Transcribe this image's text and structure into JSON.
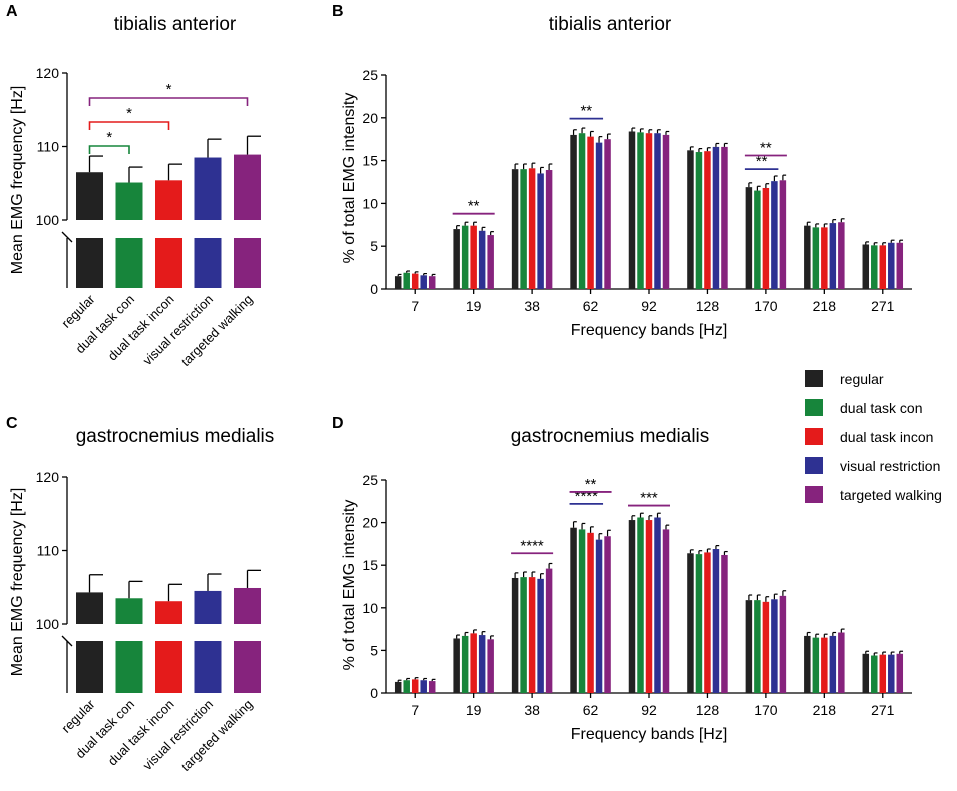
{
  "groups": [
    "regular",
    "dual task con",
    "dual task incon",
    "visual restriction",
    "targeted walking"
  ],
  "colors": [
    "#222222",
    "#17853b",
    "#e41b1b",
    "#2e3192",
    "#86237d"
  ],
  "legend": {
    "items": [
      "regular",
      "dual task con",
      "dual task incon",
      "visual restriction",
      "targeted walking"
    ]
  },
  "chart_data": [
    {
      "id": "A",
      "type": "bar",
      "panel_label": "A",
      "title": "tibialis anterior",
      "ylabel": "Mean EMG frequency [Hz]",
      "xlabel": "",
      "categories": [
        "regular",
        "dual task con",
        "dual task incon",
        "visual restriction",
        "targeted walking"
      ],
      "values": [
        106.5,
        105.1,
        105.4,
        108.5,
        108.9
      ],
      "errors": [
        2.2,
        2.1,
        2.2,
        2.5,
        2.5
      ],
      "ylim": [
        100,
        120
      ],
      "yticks": [
        "100",
        "110",
        "120"
      ],
      "axis_break": true,
      "significance": [
        {
          "from": 0,
          "to": 1,
          "label": "*",
          "color": "#17853b"
        },
        {
          "from": 0,
          "to": 2,
          "label": "*",
          "color": "#e41b1b"
        },
        {
          "from": 0,
          "to": 4,
          "label": "*",
          "color": "#86237d"
        }
      ]
    },
    {
      "id": "B",
      "type": "bar",
      "panel_label": "B",
      "title": "tibialis anterior",
      "ylabel": "% of total EMG intensity",
      "xlabel": "Frequency bands [Hz]",
      "categories": [
        "7",
        "19",
        "38",
        "62",
        "92",
        "128",
        "170",
        "218",
        "271"
      ],
      "series": [
        {
          "name": "regular",
          "values": [
            1.5,
            7.0,
            14.0,
            18.0,
            18.4,
            16.2,
            11.9,
            7.4,
            5.2
          ],
          "errors": [
            0.2,
            0.4,
            0.6,
            0.6,
            0.4,
            0.4,
            0.5,
            0.4,
            0.3
          ]
        },
        {
          "name": "dual task con",
          "values": [
            1.9,
            7.4,
            14.0,
            18.2,
            18.3,
            16.0,
            11.5,
            7.2,
            5.1
          ],
          "errors": [
            0.2,
            0.4,
            0.6,
            0.6,
            0.4,
            0.4,
            0.5,
            0.4,
            0.3
          ]
        },
        {
          "name": "dual task incon",
          "values": [
            1.8,
            7.4,
            14.1,
            17.8,
            18.2,
            16.1,
            11.8,
            7.2,
            5.1
          ],
          "errors": [
            0.2,
            0.4,
            0.6,
            0.6,
            0.4,
            0.4,
            0.5,
            0.4,
            0.3
          ]
        },
        {
          "name": "visual restriction",
          "values": [
            1.6,
            6.8,
            13.5,
            17.1,
            18.2,
            16.6,
            12.6,
            7.7,
            5.4
          ],
          "errors": [
            0.2,
            0.4,
            0.7,
            0.7,
            0.4,
            0.4,
            0.6,
            0.4,
            0.3
          ]
        },
        {
          "name": "targeted walking",
          "values": [
            1.5,
            6.3,
            13.9,
            17.5,
            18.0,
            16.6,
            12.7,
            7.8,
            5.4
          ],
          "errors": [
            0.2,
            0.4,
            0.7,
            0.6,
            0.4,
            0.4,
            0.6,
            0.4,
            0.3
          ]
        }
      ],
      "ylim": [
        0,
        25
      ],
      "yticks": [
        "0",
        "5",
        "10",
        "15",
        "20",
        "25"
      ],
      "significance": [
        {
          "category": 1,
          "from": 0,
          "to": 4,
          "label": "**",
          "color": "#86237d",
          "y": 8.8
        },
        {
          "category": 3,
          "from": 0,
          "to": 3,
          "label": "**",
          "color": "#2e3192",
          "y": 19.9
        },
        {
          "category": 6,
          "from": 0,
          "to": 3,
          "label": "**",
          "color": "#2e3192",
          "y": 14.0
        },
        {
          "category": 6,
          "from": 0,
          "to": 4,
          "label": "**",
          "color": "#86237d",
          "y": 15.6
        }
      ]
    },
    {
      "id": "C",
      "type": "bar",
      "panel_label": "C",
      "title": "gastrocnemius medialis",
      "ylabel": "Mean EMG frequency [Hz]",
      "xlabel": "",
      "categories": [
        "regular",
        "dual task con",
        "dual task incon",
        "visual restriction",
        "targeted walking"
      ],
      "values": [
        104.3,
        103.5,
        103.1,
        104.5,
        104.9
      ],
      "errors": [
        2.4,
        2.3,
        2.3,
        2.3,
        2.4
      ],
      "ylim": [
        100,
        120
      ],
      "yticks": [
        "100",
        "110",
        "120"
      ],
      "axis_break": true,
      "significance": []
    },
    {
      "id": "D",
      "type": "bar",
      "panel_label": "D",
      "title": "gastrocnemius medialis",
      "ylabel": "% of total EMG intensity",
      "xlabel": "Frequency bands [Hz]",
      "categories": [
        "7",
        "19",
        "38",
        "62",
        "92",
        "128",
        "170",
        "218",
        "271"
      ],
      "series": [
        {
          "name": "regular",
          "values": [
            1.3,
            6.4,
            13.5,
            19.4,
            20.3,
            16.4,
            10.9,
            6.7,
            4.6
          ],
          "errors": [
            0.2,
            0.4,
            0.6,
            0.7,
            0.5,
            0.4,
            0.6,
            0.4,
            0.3
          ]
        },
        {
          "name": "dual task con",
          "values": [
            1.5,
            6.7,
            13.6,
            19.2,
            20.6,
            16.3,
            10.9,
            6.5,
            4.4
          ],
          "errors": [
            0.2,
            0.4,
            0.6,
            0.7,
            0.5,
            0.4,
            0.6,
            0.4,
            0.3
          ]
        },
        {
          "name": "dual task incon",
          "values": [
            1.6,
            7.0,
            13.6,
            18.8,
            20.3,
            16.5,
            10.7,
            6.5,
            4.5
          ],
          "errors": [
            0.2,
            0.4,
            0.6,
            0.7,
            0.5,
            0.4,
            0.6,
            0.4,
            0.3
          ]
        },
        {
          "name": "visual restriction",
          "values": [
            1.5,
            6.8,
            13.4,
            18.0,
            20.6,
            16.9,
            11.0,
            6.7,
            4.5
          ],
          "errors": [
            0.2,
            0.4,
            0.6,
            0.7,
            0.5,
            0.4,
            0.6,
            0.4,
            0.3
          ]
        },
        {
          "name": "targeted walking",
          "values": [
            1.4,
            6.3,
            14.6,
            18.4,
            19.2,
            16.2,
            11.4,
            7.1,
            4.6
          ],
          "errors": [
            0.2,
            0.4,
            0.6,
            0.7,
            0.5,
            0.4,
            0.6,
            0.4,
            0.3
          ]
        }
      ],
      "ylim": [
        0,
        25
      ],
      "yticks": [
        "0",
        "5",
        "10",
        "15",
        "20",
        "25"
      ],
      "significance": [
        {
          "category": 2,
          "from": 0,
          "to": 4,
          "label": "****",
          "color": "#86237d",
          "y": 16.4
        },
        {
          "category": 3,
          "from": 0,
          "to": 3,
          "label": "****",
          "color": "#2e3192",
          "y": 22.2
        },
        {
          "category": 3,
          "from": 0,
          "to": 4,
          "label": "**",
          "color": "#86237d",
          "y": 23.6
        },
        {
          "category": 4,
          "from": 0,
          "to": 4,
          "label": "***",
          "color": "#86237d",
          "y": 22.0
        }
      ]
    }
  ]
}
